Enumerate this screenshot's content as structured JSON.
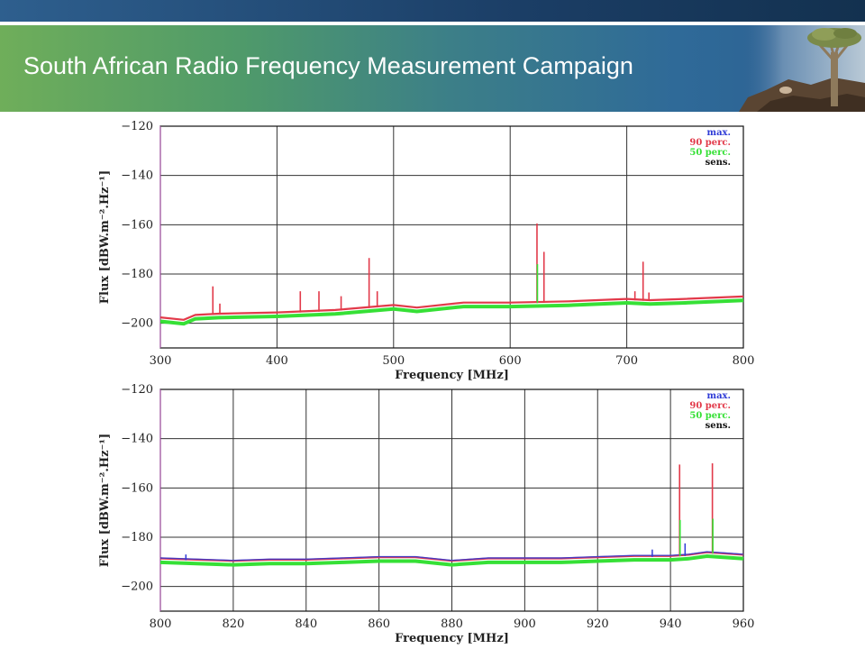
{
  "header": {
    "title": "South African Radio Frequency Measurement Campaign"
  },
  "colors": {
    "max": "#2f3bd6",
    "p90": "#e23a4a",
    "p50": "#36e036",
    "sens": "#111111"
  },
  "chart_data": [
    {
      "type": "line",
      "xlabel": "Frequency [MHz]",
      "ylabel": "Flux [dBW.m^-2.Hz^-1]",
      "xlim": [
        300,
        800
      ],
      "ylim": [
        -210,
        -120
      ],
      "xticks": [
        300,
        400,
        500,
        600,
        700,
        800
      ],
      "yticks": [
        -120,
        -140,
        -160,
        -180,
        -200
      ],
      "grid": true,
      "legend_position": "top-right",
      "legend": [
        "max.",
        "90 perc.",
        "50 perc.",
        "sens."
      ],
      "baseline": {
        "x": [
          300,
          320,
          330,
          350,
          400,
          450,
          500,
          520,
          560,
          600,
          650,
          700,
          720,
          750,
          800
        ],
        "y": [
          -198,
          -199,
          -197,
          -196.5,
          -196,
          -195,
          -193,
          -194,
          -192,
          -192,
          -191.5,
          -190.5,
          -191,
          -190.5,
          -189.5
        ]
      },
      "spikes_p90": [
        {
          "x": 345,
          "y": -185
        },
        {
          "x": 351,
          "y": -192
        },
        {
          "x": 420,
          "y": -187
        },
        {
          "x": 436,
          "y": -187
        },
        {
          "x": 455,
          "y": -189
        },
        {
          "x": 479,
          "y": -173.5
        },
        {
          "x": 486,
          "y": -187
        },
        {
          "x": 623,
          "y": -159.5
        },
        {
          "x": 629,
          "y": -171
        },
        {
          "x": 707,
          "y": -187
        },
        {
          "x": 714,
          "y": -175
        },
        {
          "x": 719,
          "y": -187.5
        }
      ],
      "spikes_p50": [
        {
          "x": 623,
          "y": -176
        }
      ]
    },
    {
      "type": "line",
      "xlabel": "Frequency [MHz]",
      "ylabel": "Flux [dBW.m^-2.Hz^-1]",
      "xlim": [
        800,
        960
      ],
      "ylim": [
        -210,
        -120
      ],
      "xticks": [
        800,
        820,
        840,
        860,
        880,
        900,
        920,
        940,
        960
      ],
      "yticks": [
        -120,
        -140,
        -160,
        -180,
        -200
      ],
      "grid": true,
      "legend_position": "top-right",
      "legend": [
        "max.",
        "90 perc.",
        "50 perc.",
        "sens."
      ],
      "baseline": {
        "x": [
          800,
          810,
          820,
          830,
          840,
          850,
          860,
          870,
          880,
          890,
          900,
          910,
          920,
          930,
          940,
          945,
          950,
          955,
          960
        ],
        "y": [
          -189,
          -189.5,
          -190,
          -189.5,
          -189.5,
          -189,
          -188.5,
          -188.5,
          -190,
          -189,
          -189,
          -189,
          -188.5,
          -188,
          -188,
          -187.5,
          -186.5,
          -187,
          -187.5
        ]
      },
      "spikes_p90": [
        {
          "x": 942.5,
          "y": -150.5
        },
        {
          "x": 951.5,
          "y": -150
        }
      ],
      "spikes_p50": [
        {
          "x": 942.5,
          "y": -173
        },
        {
          "x": 951.5,
          "y": -172.5
        }
      ],
      "spikes_max": [
        {
          "x": 807,
          "y": -187
        },
        {
          "x": 935,
          "y": -185
        },
        {
          "x": 944,
          "y": -182.5
        }
      ]
    }
  ]
}
